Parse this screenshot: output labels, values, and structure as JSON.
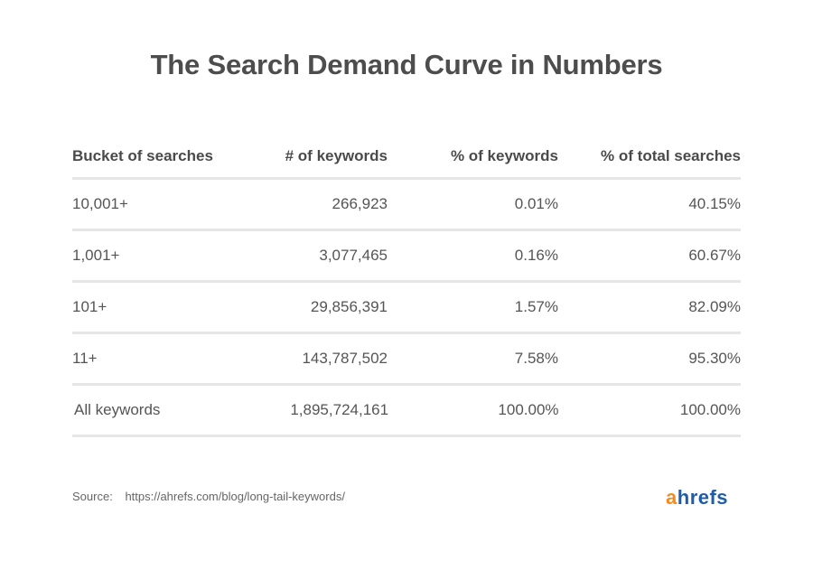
{
  "title": "The Search Demand Curve in Numbers",
  "table": {
    "headers": [
      "Bucket of searches",
      "# of keywords",
      "% of keywords",
      "% of total searches"
    ],
    "rows": [
      [
        "10,001+",
        "266,923",
        "0.01%",
        "40.15%"
      ],
      [
        "1,001+",
        "3,077,465",
        "0.16%",
        "60.67%"
      ],
      [
        "101+",
        "29,856,391",
        "1.57%",
        "82.09%"
      ],
      [
        "11+",
        "143,787,502",
        "7.58%",
        "95.30%"
      ],
      [
        "All keywords",
        "1,895,724,161",
        "100.00%",
        "100.00%"
      ]
    ]
  },
  "source": {
    "label": "Source:",
    "url": "https://ahrefs.com/blog/long-tail-keywords/"
  },
  "logo": {
    "first_letter": "a",
    "rest": "hrefs",
    "colors": {
      "accent": "#f28c1e",
      "brand": "#1f5da8"
    }
  }
}
